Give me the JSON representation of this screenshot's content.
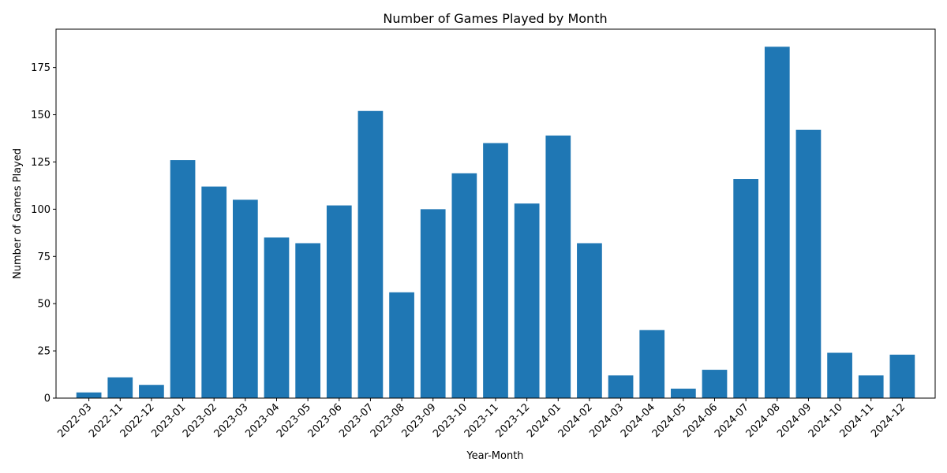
{
  "chart_data": {
    "type": "bar",
    "title": "Number of Games Played by Month",
    "xlabel": "Year-Month",
    "ylabel": "Number of Games Played",
    "categories": [
      "2022-03",
      "2022-11",
      "2022-12",
      "2023-01",
      "2023-02",
      "2023-03",
      "2023-04",
      "2023-05",
      "2023-06",
      "2023-07",
      "2023-08",
      "2023-09",
      "2023-10",
      "2023-11",
      "2023-12",
      "2024-01",
      "2024-02",
      "2024-03",
      "2024-04",
      "2024-05",
      "2024-06",
      "2024-07",
      "2024-08",
      "2024-09",
      "2024-10",
      "2024-11",
      "2024-12"
    ],
    "values": [
      3,
      11,
      7,
      126,
      112,
      105,
      85,
      82,
      102,
      152,
      56,
      100,
      119,
      135,
      103,
      139,
      82,
      12,
      36,
      5,
      15,
      116,
      186,
      142,
      24,
      12,
      23
    ],
    "ylim": [
      0,
      195.3
    ],
    "yticks": [
      0,
      25,
      50,
      75,
      100,
      125,
      150,
      175
    ],
    "bar_color": "#1f77b4",
    "grid": false,
    "legend": "none"
  }
}
